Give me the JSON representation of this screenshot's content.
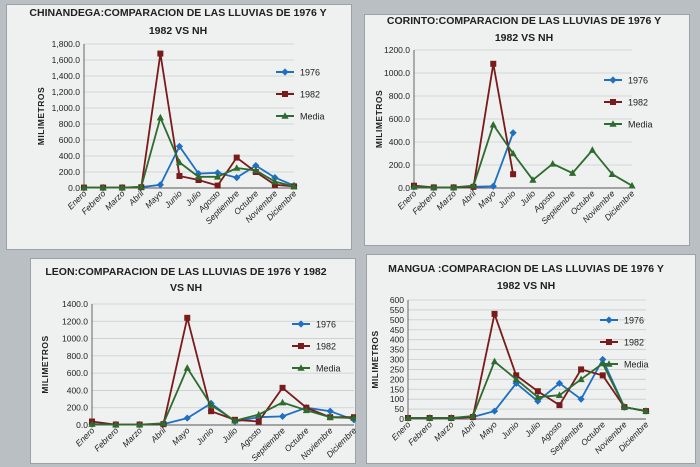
{
  "colors": {
    "s1976": "#1f6fc2",
    "s1982": "#7a1a1a",
    "media": "#2e6b2e"
  },
  "chart_data": [
    {
      "type": "line",
      "title": [
        "CHINANDEGA:COMPARACION DE LAS LLUVIAS DE 1976 Y",
        "1982 VS NH"
      ],
      "ylabel": "MILIMETROS",
      "ylim": [
        0,
        1800
      ],
      "yticks": [
        "0.0",
        "200.0",
        "400.0",
        "600.0",
        "800.0",
        "1,000.0",
        "1,200.0",
        "1,400.0",
        "1,600.0",
        "1,800.0"
      ],
      "categories": [
        "Enero",
        "Febrero",
        "Marzo",
        "Abril",
        "Mayo",
        "Junio",
        "Julio",
        "Agosto",
        "Septiembre",
        "Octubre",
        "Noviembre",
        "Diciembre"
      ],
      "legend_position": "right",
      "series": [
        {
          "name": "1976",
          "values": [
            5,
            5,
            5,
            10,
            40,
            520,
            180,
            190,
            130,
            280,
            130,
            30
          ]
        },
        {
          "name": "1982",
          "values": [
            5,
            5,
            5,
            10,
            1680,
            150,
            100,
            30,
            380,
            200,
            40,
            20
          ]
        },
        {
          "name": "Media",
          "values": [
            5,
            5,
            5,
            15,
            880,
            320,
            140,
            140,
            250,
            220,
            80,
            20
          ]
        }
      ]
    },
    {
      "type": "line",
      "title": [
        "CORINTO:COMPARACION DE LAS LLUVIAS DE 1976 Y",
        "1982 VS NH"
      ],
      "ylabel": "MILIMETROS",
      "ylim": [
        0,
        1200
      ],
      "yticks": [
        "0.0",
        "200.0",
        "400.0",
        "600.0",
        "800.0",
        "1000.0",
        "1200.0"
      ],
      "categories": [
        "Enero",
        "Febrero",
        "Marzo",
        "Abril",
        "Mayo",
        "Junio",
        "Julio",
        "Agosto",
        "Septiembre",
        "Octubre",
        "Noviembre",
        "Diciembre"
      ],
      "legend_position": "right",
      "series": [
        {
          "name": "1976",
          "values": [
            10,
            5,
            5,
            10,
            15,
            480,
            null,
            null,
            null,
            null,
            null,
            null
          ]
        },
        {
          "name": "1982",
          "values": [
            20,
            5,
            5,
            10,
            1080,
            120,
            null,
            null,
            null,
            null,
            null,
            null
          ]
        },
        {
          "name": "Media",
          "values": [
            10,
            5,
            5,
            20,
            550,
            300,
            70,
            210,
            130,
            330,
            120,
            20
          ]
        }
      ]
    },
    {
      "type": "line",
      "title": [
        "LEON:COMPARACION DE LAS LLUVIAS DE 1976 Y 1982",
        "VS NH"
      ],
      "ylabel": "MILIMETROS",
      "ylim": [
        0,
        1400
      ],
      "yticks": [
        "0.0",
        "200.0",
        "400.0",
        "600.0",
        "800.0",
        "1000.0",
        "1200.0",
        "1400.0"
      ],
      "categories": [
        "Enero",
        "Febrero",
        "Marzo",
        "Abril",
        "Mayo",
        "Junio",
        "Julio",
        "Agosto",
        "Septiembre",
        "Octubre",
        "Noviembre",
        "Diciembre"
      ],
      "legend_position": "right",
      "series": [
        {
          "name": "1976",
          "values": [
            10,
            5,
            5,
            10,
            80,
            250,
            40,
            90,
            100,
            200,
            160,
            60
          ]
        },
        {
          "name": "1982",
          "values": [
            40,
            5,
            5,
            10,
            1240,
            160,
            60,
            40,
            430,
            200,
            90,
            90
          ]
        },
        {
          "name": "Media",
          "values": [
            10,
            5,
            5,
            20,
            660,
            230,
            50,
            120,
            260,
            170,
            90,
            80
          ]
        }
      ]
    },
    {
      "type": "line",
      "title": [
        "MANGUA :COMPARACION DE LAS LLUVIAS DE 1976 Y",
        "1982 VS NH"
      ],
      "ylabel": "MILIMETROS",
      "ylim": [
        0,
        600
      ],
      "yticks": [
        "0",
        "50",
        "100",
        "150",
        "200",
        "250",
        "300",
        "350",
        "400",
        "450",
        "500",
        "550",
        "600"
      ],
      "categories": [
        "Enero",
        "Febrero",
        "Marzo",
        "Abril",
        "Mayo",
        "Junio",
        "Julio",
        "Agosto",
        "Septiembre",
        "Octubre",
        "Noviembre",
        "Diciembre"
      ],
      "legend_position": "right",
      "series": [
        {
          "name": "1976",
          "values": [
            5,
            5,
            5,
            10,
            40,
            180,
            90,
            180,
            100,
            300,
            60,
            40
          ]
        },
        {
          "name": "1982",
          "values": [
            5,
            5,
            5,
            10,
            530,
            220,
            140,
            70,
            250,
            220,
            60,
            40
          ]
        },
        {
          "name": "Media",
          "values": [
            5,
            5,
            5,
            15,
            290,
            200,
            110,
            120,
            200,
            280,
            60,
            40
          ]
        }
      ]
    }
  ]
}
